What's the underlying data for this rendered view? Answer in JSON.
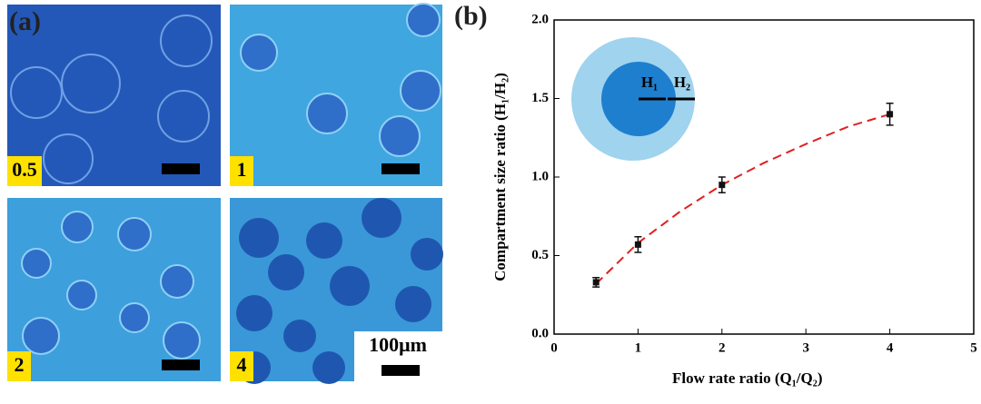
{
  "panel_a": {
    "label": "(a)",
    "panels": [
      "0.5",
      "1",
      "2",
      "4"
    ],
    "scale_label": "100μm"
  },
  "chart_data": {
    "type": "scatter",
    "label": "(b)",
    "xlabel": "Flow rate ratio (Q₁/Q₂)",
    "ylabel": "Compartment size ratio (H₁/H₂)",
    "x": [
      0.5,
      1,
      2,
      4
    ],
    "y": [
      0.33,
      0.57,
      0.95,
      1.4
    ],
    "errors": [
      0.03,
      0.05,
      0.05,
      0.07
    ],
    "color": "#111111",
    "fit": {
      "color": "#e02020",
      "x": [
        0.5,
        1,
        1.5,
        2,
        2.5,
        3,
        3.5,
        4
      ],
      "y": [
        0.32,
        0.58,
        0.78,
        0.95,
        1.09,
        1.21,
        1.32,
        1.4
      ]
    },
    "inset_labels": [
      "H₁",
      "H₂"
    ],
    "xlim": [
      0,
      5
    ],
    "xticks": [
      0,
      1,
      2,
      3,
      4,
      5
    ],
    "ylim": [
      0,
      2
    ],
    "yticks": [
      {
        "value": 0,
        "label": "0.0"
      },
      0.5,
      {
        "value": 1,
        "label": "1.0"
      },
      1.5,
      {
        "value": 2,
        "label": "2.0"
      }
    ]
  }
}
